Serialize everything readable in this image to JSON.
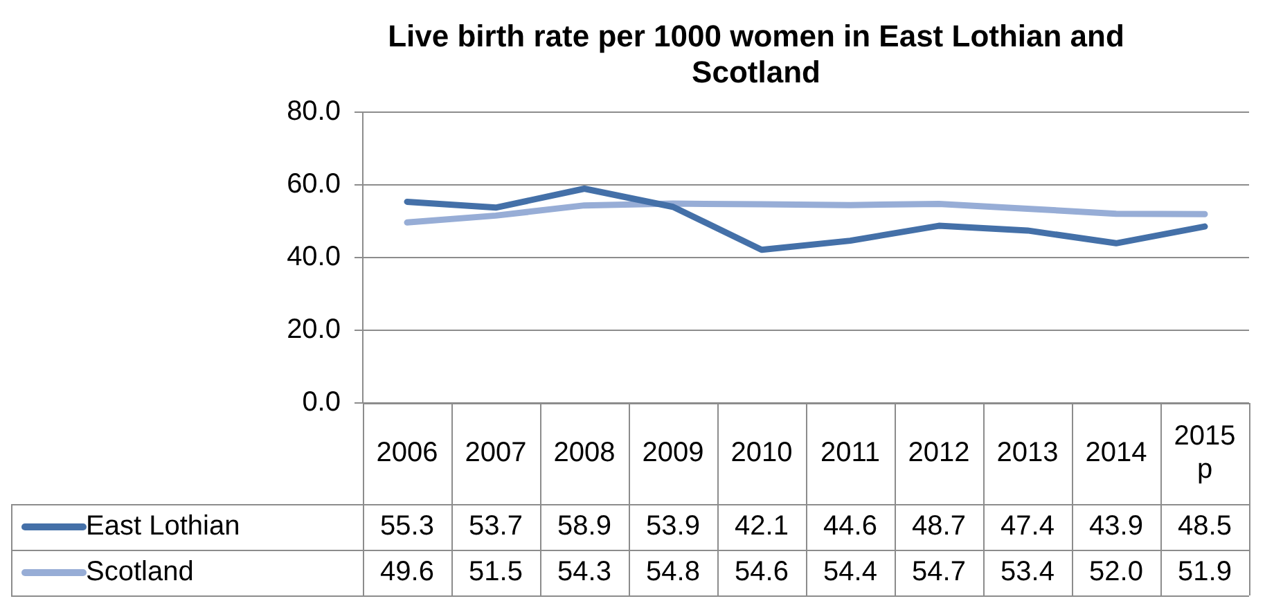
{
  "chart_data": {
    "type": "line",
    "title": "Live birth rate per 1000 women in East Lothian and Scotland",
    "categories": [
      "2006",
      "2007",
      "2008",
      "2009",
      "2010",
      "2011",
      "2012",
      "2013",
      "2014",
      "2015 p"
    ],
    "series": [
      {
        "name": "East Lothian",
        "color": "#4470a8",
        "values": [
          55.3,
          53.7,
          58.9,
          53.9,
          42.1,
          44.6,
          48.7,
          47.4,
          43.9,
          48.5
        ],
        "value_labels": [
          "55.3",
          "53.7",
          "58.9",
          "53.9",
          "42.1",
          "44.6",
          "48.7",
          "47.4",
          "43.9",
          "48.5"
        ]
      },
      {
        "name": "Scotland",
        "color": "#97add6",
        "values": [
          49.6,
          51.5,
          54.3,
          54.8,
          54.6,
          54.4,
          54.7,
          53.4,
          52.0,
          51.9
        ],
        "value_labels": [
          "49.6",
          "51.5",
          "54.3",
          "54.8",
          "54.6",
          "54.4",
          "54.7",
          "53.4",
          "52.0",
          "51.9"
        ]
      }
    ],
    "ylim": [
      0,
      80
    ],
    "yticks": [
      {
        "value": 0,
        "label": "0.0"
      },
      {
        "value": 20,
        "label": "20.0"
      },
      {
        "value": 40,
        "label": "40.0"
      },
      {
        "value": 60,
        "label": "60.0"
      },
      {
        "value": 80,
        "label": "80.0"
      }
    ],
    "grid": "y",
    "legend": "bottom",
    "marker": "none",
    "line_style": "solid"
  }
}
